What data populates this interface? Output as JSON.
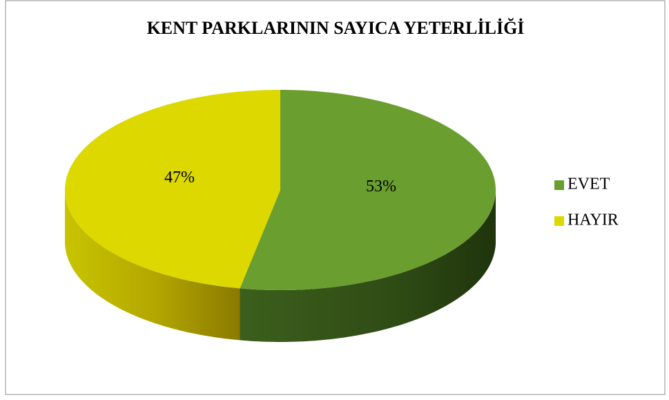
{
  "chart_data": {
    "type": "pie",
    "title": "KENT PARKLARININ SAYICA YETERLİLİĞİ",
    "categories": [
      "EVET",
      "HAYIR"
    ],
    "values": [
      53,
      47
    ],
    "value_labels": [
      "53%",
      "47%"
    ],
    "colors": [
      "#6a9e2f",
      "#dcd800"
    ],
    "legend": "right"
  }
}
